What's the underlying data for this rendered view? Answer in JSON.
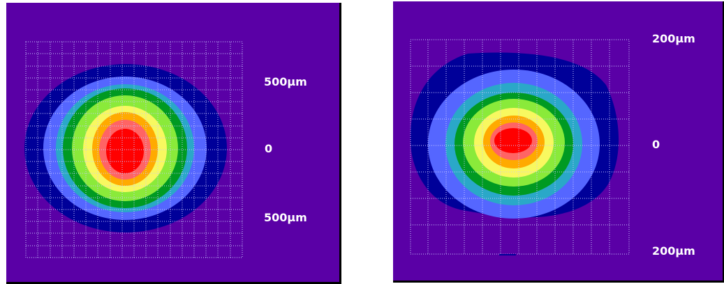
{
  "palette": [
    "#000099",
    "#5566ff",
    "#2aa8c8",
    "#009a22",
    "#8aea3a",
    "#f8f860",
    "#ffaa00",
    "#ff6464",
    "#ff0000"
  ],
  "background_color": "#5a00a6",
  "grid_color": "#c8c8ff",
  "left_plot": {
    "labels": {
      "top": "500µm",
      "center": "0",
      "bottom": "500µm"
    }
  },
  "right_plot": {
    "labels": {
      "top": "200µm",
      "center": "0",
      "bottom": "200µm"
    }
  }
}
